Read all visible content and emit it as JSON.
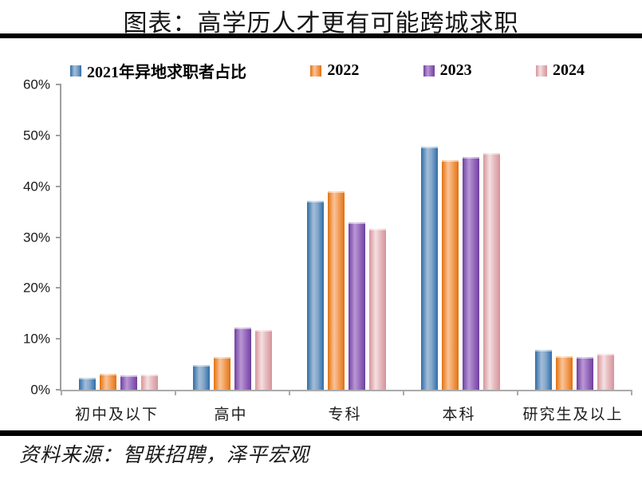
{
  "header": {
    "title": "图表：高学历人才更有可能跨城求职"
  },
  "footer": {
    "source": "资料来源：智联招聘，泽平宏观"
  },
  "chart_data": {
    "type": "bar",
    "title": "图表：高学历人才更有可能跨城求职",
    "categories": [
      "初中及以下",
      "高中",
      "专科",
      "本科",
      "研究生及以上"
    ],
    "series": [
      {
        "name": "2021年异地求职者占比",
        "values": [
          2.3,
          4.9,
          37.2,
          47.8,
          7.9
        ],
        "color_dark": "#2E6DA8",
        "color_light": "#A4BDD7",
        "color_mid": "#86A9CB"
      },
      {
        "name": "2022",
        "values": [
          3.2,
          6.4,
          39.0,
          45.1,
          6.6
        ],
        "color_dark": "#E2710E",
        "color_light": "#F9C498",
        "color_mid": "#F4A464"
      },
      {
        "name": "2023",
        "values": [
          2.9,
          12.2,
          32.9,
          45.7,
          6.4
        ],
        "color_dark": "#6F3FA0",
        "color_light": "#BA97D6",
        "color_mid": "#9E74C2"
      },
      {
        "name": "2024",
        "values": [
          3.0,
          11.7,
          31.6,
          46.6,
          7.1
        ],
        "color_dark": "#D6939B",
        "color_light": "#F4E0E2",
        "color_mid": "#E7BFC2"
      }
    ],
    "xlabel": "",
    "ylabel": "",
    "ylim": [
      0,
      60
    ],
    "ytick_step": 10,
    "ytick_labels": [
      "0%",
      "10%",
      "20%",
      "30%",
      "40%",
      "50%",
      "60%"
    ],
    "legend_position": "top",
    "grid": false,
    "axis_color": "#ababab"
  }
}
